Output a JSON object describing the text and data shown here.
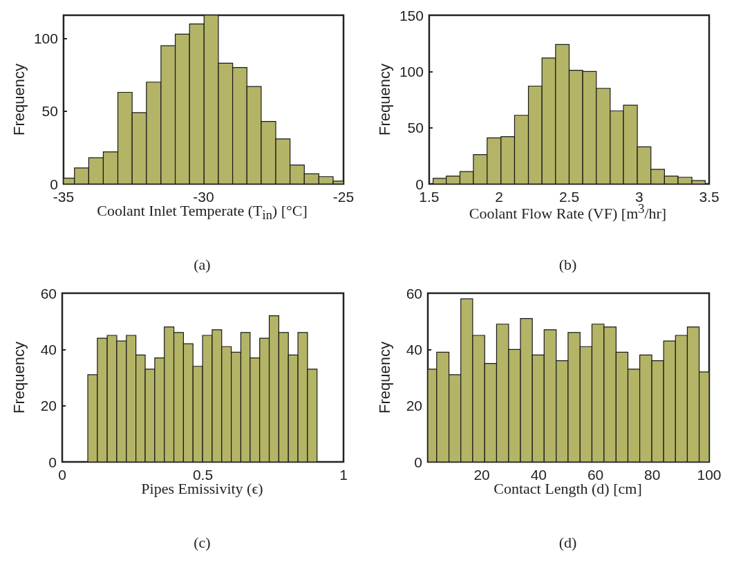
{
  "chart_data": [
    {
      "type": "histogram",
      "xlabel": "Coolant Inlet Temperate (T$_{in}$) [°C]",
      "ylabel": "Frequency",
      "annotations": [
        "(a)"
      ],
      "color": "#b3b466",
      "xlim": [
        -35,
        -25
      ],
      "xticks": [
        -35,
        -30,
        -25
      ],
      "ylim": [
        0,
        116
      ],
      "yticks": [
        0,
        50,
        100
      ],
      "bins": [
        -35,
        -34.61,
        -34.1,
        -33.58,
        -33.06,
        -32.55,
        -32.04,
        -31.52,
        -31.01,
        -30.5,
        -29.98,
        -29.47,
        -28.96,
        -28.45,
        -27.94,
        -27.42,
        -26.91,
        -26.4,
        -25.88,
        -25.37,
        -25
      ],
      "values": [
        4,
        11,
        18,
        22,
        63,
        49,
        70,
        95,
        103,
        110,
        116,
        83,
        80,
        67,
        43,
        31,
        13,
        7,
        5,
        2
      ]
    },
    {
      "type": "histogram",
      "xlabel": "Coolant Flow Rate (VF) [m$^{3}$/hr]",
      "ylabel": "Frequency",
      "annotations": [
        "(b)"
      ],
      "color": "#b3b466",
      "xlim": [
        1.5,
        3.5
      ],
      "xticks": [
        1.5,
        2,
        2.5,
        3,
        3.5
      ],
      "ylim": [
        0,
        150
      ],
      "yticks": [
        0,
        50,
        100,
        150
      ],
      "bins": [
        1.528,
        1.622,
        1.72,
        1.816,
        1.914,
        2.013,
        2.11,
        2.209,
        2.306,
        2.403,
        2.5,
        2.597,
        2.694,
        2.793,
        2.888,
        2.987,
        3.084,
        3.181,
        3.278,
        3.377,
        3.472
      ],
      "values": [
        5,
        7,
        11,
        26,
        41,
        42,
        61,
        87,
        112,
        124,
        101,
        100,
        85,
        65,
        70,
        33,
        13,
        7,
        6,
        3
      ]
    },
    {
      "type": "histogram",
      "xlabel": "Pipes Emissivity (ϵ)",
      "ylabel": "Frequency",
      "annotations": [
        "(c)"
      ],
      "color": "#b3b466",
      "xlim": [
        0,
        1
      ],
      "xticks": [
        0,
        0.5,
        1
      ],
      "ylim": [
        0,
        60
      ],
      "yticks": [
        0,
        20,
        40,
        60
      ],
      "bins": [
        0.091,
        0.125,
        0.16,
        0.194,
        0.228,
        0.262,
        0.295,
        0.329,
        0.363,
        0.397,
        0.431,
        0.465,
        0.499,
        0.533,
        0.567,
        0.601,
        0.635,
        0.668,
        0.702,
        0.736,
        0.77,
        0.804,
        0.838,
        0.872,
        0.906
      ],
      "values": [
        31,
        44,
        45,
        43,
        45,
        38,
        33,
        37,
        48,
        46,
        42,
        34,
        45,
        47,
        41,
        39,
        46,
        37,
        44,
        52,
        46,
        38,
        46,
        33
      ]
    },
    {
      "type": "histogram",
      "xlabel": "Contact Length (d) [cm]",
      "ylabel": "Frequency",
      "annotations": [
        "(d)"
      ],
      "color": "#b3b466",
      "xlim": [
        1,
        100
      ],
      "xticks": [
        20,
        40,
        60,
        80,
        100
      ],
      "ylim": [
        0,
        60
      ],
      "yticks": [
        0,
        20,
        40,
        60
      ],
      "bins": [
        1,
        4.12,
        8.44,
        12.61,
        16.78,
        21.02,
        25.19,
        29.43,
        33.6,
        37.77,
        41.93,
        46.18,
        50.35,
        54.59,
        58.76,
        63,
        67.25,
        71.42,
        75.58,
        79.83,
        83.99,
        88.16,
        92.33,
        96.49,
        100
      ],
      "values": [
        33,
        39,
        31,
        58,
        45,
        35,
        49,
        40,
        51,
        38,
        47,
        36,
        46,
        41,
        49,
        48,
        39,
        33,
        38,
        36,
        43,
        45,
        48,
        32
      ]
    }
  ]
}
